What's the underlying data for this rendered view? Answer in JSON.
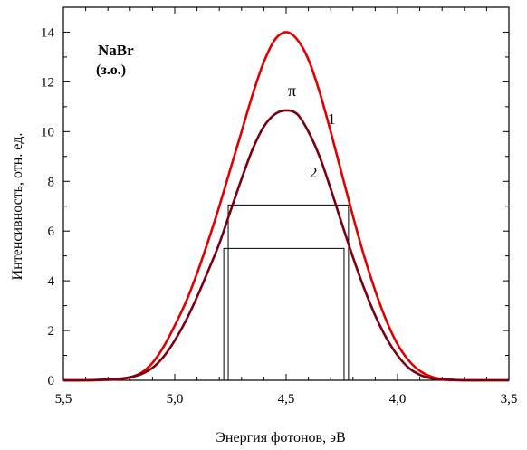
{
  "chart_data": {
    "type": "line",
    "xlabel": "Энергия фотонов, эВ",
    "ylabel": "Интенсивность, отн. ед.",
    "xlim": [
      5.5,
      3.5
    ],
    "ylim": [
      0,
      15
    ],
    "x_reversed": true,
    "x_ticks": [
      "5,5",
      "5,0",
      "4,5",
      "4,0",
      "3,5"
    ],
    "x_tick_values": [
      5.5,
      5.0,
      4.5,
      4.0,
      3.5
    ],
    "y_ticks": [
      "0",
      "2",
      "4",
      "6",
      "8",
      "10",
      "12",
      "14"
    ],
    "y_tick_values": [
      0,
      2,
      4,
      6,
      8,
      10,
      12,
      14
    ],
    "grid": false,
    "annotations": {
      "compound": "NaBr",
      "condition": "(з.о.)",
      "polarization": "π",
      "curve1_label": "1",
      "curve2_label": "2"
    },
    "series": [
      {
        "label": "1",
        "color": "#e00000",
        "x": [
          5.5,
          5.4,
          5.3,
          5.25,
          5.2,
          5.15,
          5.1,
          5.05,
          5.0,
          4.95,
          4.9,
          4.85,
          4.8,
          4.75,
          4.7,
          4.65,
          4.6,
          4.55,
          4.5,
          4.45,
          4.4,
          4.35,
          4.3,
          4.25,
          4.2,
          4.15,
          4.1,
          4.05,
          4.0,
          3.95,
          3.9,
          3.85,
          3.8,
          3.75,
          3.7,
          3.6,
          3.5
        ],
        "y": [
          0.0,
          0.0,
          0.02,
          0.05,
          0.12,
          0.3,
          0.7,
          1.35,
          2.2,
          3.15,
          4.3,
          5.6,
          7.0,
          8.5,
          10.0,
          11.5,
          12.8,
          13.7,
          14.0,
          13.7,
          12.9,
          11.6,
          10.0,
          8.3,
          6.6,
          5.0,
          3.6,
          2.4,
          1.45,
          0.8,
          0.38,
          0.15,
          0.05,
          0.02,
          0.0,
          0.0,
          0.0
        ]
      },
      {
        "label": "2",
        "color": "#7a0010",
        "x": [
          5.5,
          5.4,
          5.3,
          5.25,
          5.2,
          5.15,
          5.1,
          5.05,
          5.0,
          4.95,
          4.9,
          4.85,
          4.8,
          4.75,
          4.7,
          4.65,
          4.6,
          4.55,
          4.5,
          4.45,
          4.4,
          4.35,
          4.3,
          4.25,
          4.2,
          4.15,
          4.1,
          4.05,
          4.0,
          3.95,
          3.9,
          3.85,
          3.8,
          3.75,
          3.7,
          3.6,
          3.5
        ],
        "y": [
          0.0,
          0.0,
          0.03,
          0.06,
          0.12,
          0.25,
          0.5,
          0.95,
          1.6,
          2.4,
          3.35,
          4.4,
          5.5,
          6.8,
          8.1,
          9.3,
          10.2,
          10.7,
          10.85,
          10.7,
          10.0,
          9.0,
          7.7,
          6.3,
          4.95,
          3.7,
          2.6,
          1.7,
          1.0,
          0.5,
          0.22,
          0.08,
          0.03,
          0.01,
          0.0,
          0.0,
          0.0
        ]
      }
    ],
    "fwhm_boxes": [
      {
        "series": "1",
        "x_left": 4.76,
        "x_right": 4.22,
        "y": 7.05
      },
      {
        "series": "2",
        "x_left": 4.78,
        "x_right": 4.24,
        "y": 5.3
      }
    ]
  }
}
